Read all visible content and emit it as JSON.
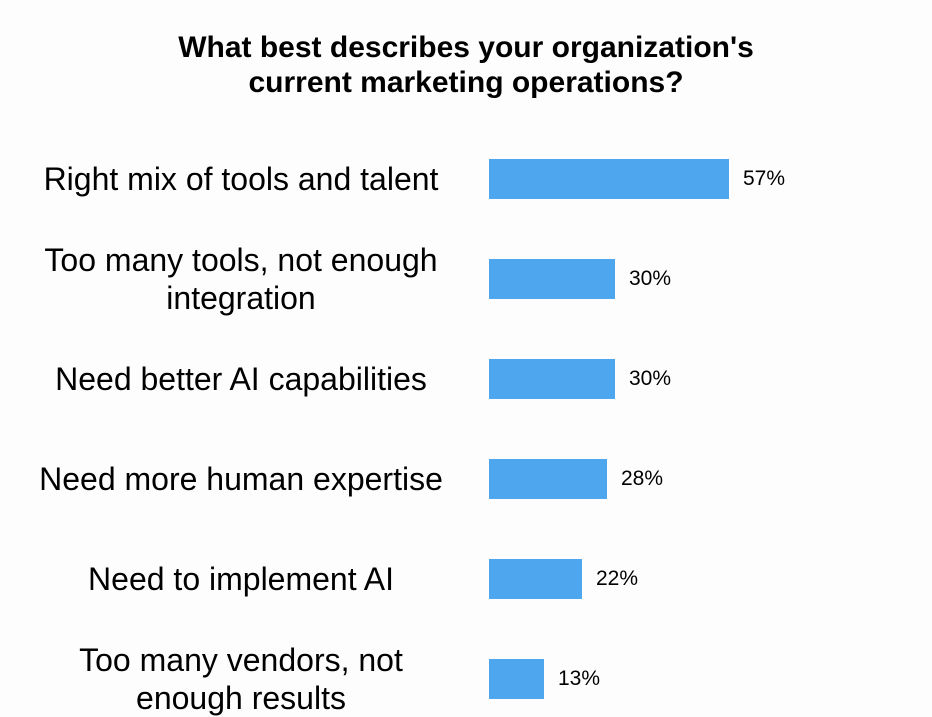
{
  "chart_data": {
    "type": "bar",
    "orientation": "horizontal",
    "title_lines": [
      "What best describes your organization's",
      "current marketing operations?"
    ],
    "categories": [
      "Right mix of tools and talent",
      "Too many tools, not enough integration",
      "Need better AI capabilities",
      "Need more human expertise",
      "Need to implement AI",
      "Too many vendors, not enough results"
    ],
    "category_lines": [
      [
        "Right mix of tools and talent"
      ],
      [
        "Too many tools, not enough",
        "integration"
      ],
      [
        "Need better AI capabilities"
      ],
      [
        "Need more human expertise"
      ],
      [
        "Need to implement AI"
      ],
      [
        "Too many vendors, not",
        "enough results"
      ]
    ],
    "values": [
      57,
      30,
      30,
      28,
      22,
      13
    ],
    "value_labels": [
      "57%",
      "30%",
      "30%",
      "28%",
      "22%",
      "13%"
    ],
    "unit": "%",
    "bar_color": "#4da6ee",
    "grid": false,
    "legend": "none"
  }
}
